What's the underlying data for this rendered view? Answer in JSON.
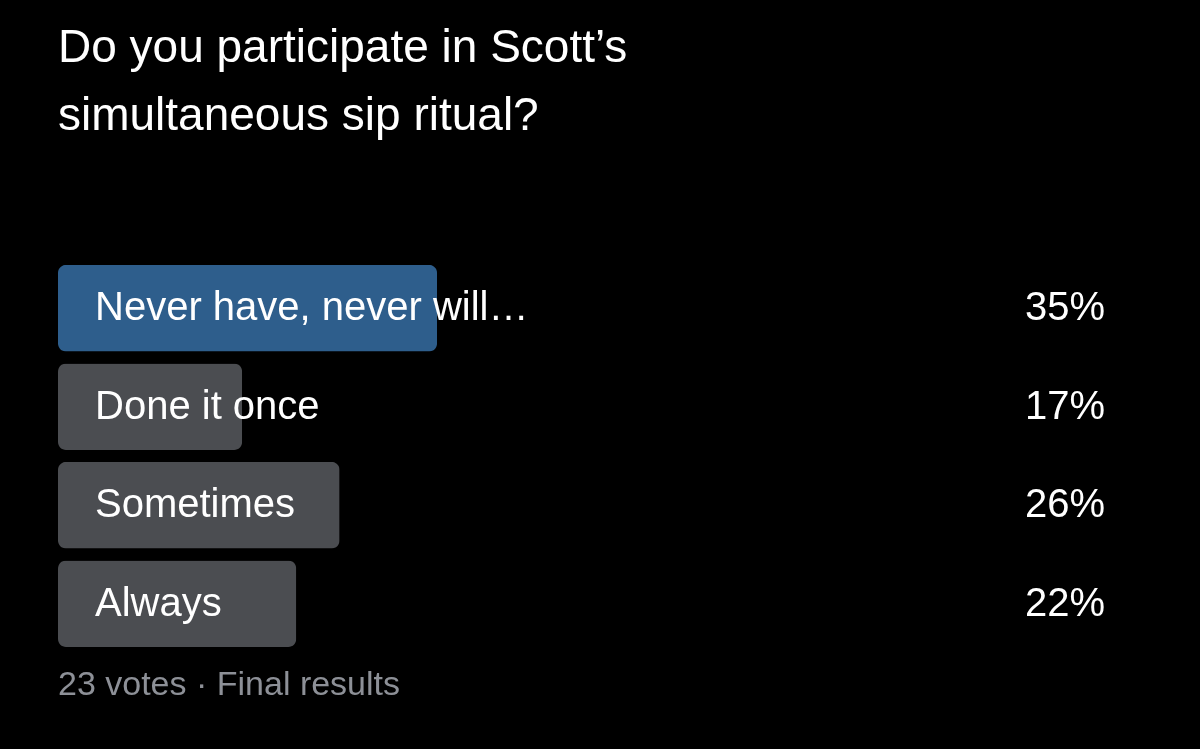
{
  "chart_data": {
    "type": "bar",
    "orientation": "horizontal",
    "title": "Do you participate in Scott’s simultaneous sip ritual?",
    "categories": [
      "Never have, never will…",
      "Done it once",
      "Sometimes",
      "Always"
    ],
    "values": [
      35,
      17,
      26,
      22
    ],
    "value_labels": [
      "35%",
      "17%",
      "26%",
      "22%"
    ],
    "colors": [
      "#2e5e8c",
      "#4b4d51",
      "#4b4d51",
      "#4b4d51"
    ],
    "annotations": [
      "23 votes · Final results"
    ]
  }
}
